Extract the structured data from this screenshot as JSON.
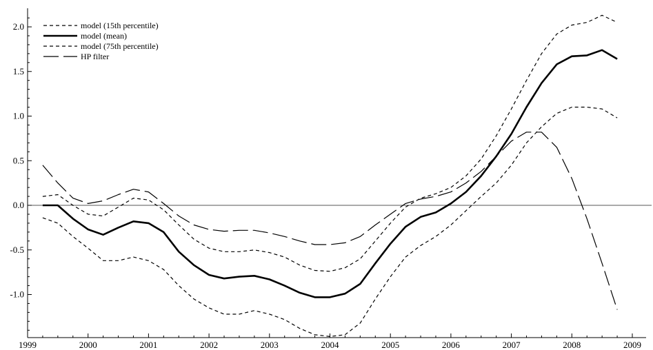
{
  "chart_data": {
    "type": "line",
    "title": "",
    "xlabel": "",
    "ylabel": "",
    "xlim": [
      1999,
      2009
    ],
    "ylim": [
      -1.5,
      2.2
    ],
    "x_ticks": [
      1999,
      2000,
      2001,
      2002,
      2003,
      2004,
      2005,
      2006,
      2007,
      2008,
      2009
    ],
    "x_tick_labels": [
      "1999",
      "2000",
      "2001",
      "2002",
      "2003",
      "2004",
      "2005",
      "2006",
      "2007",
      "2008",
      "2009"
    ],
    "y_ticks": [
      -1.0,
      -0.5,
      0.0,
      0.5,
      1.0,
      1.5,
      2.0
    ],
    "y_tick_labels": [
      "-1.0",
      "-0.5",
      "0.0",
      "0.5",
      "1.0",
      "1.5",
      "2.0"
    ],
    "grid": false,
    "zero_line": true,
    "legend_position": "top-left",
    "series": [
      {
        "name": "model (15th percentile)",
        "style": "short-dash",
        "color": "#000000",
        "points": [
          [
            1999.25,
            -0.14
          ],
          [
            1999.5,
            -0.2
          ],
          [
            1999.75,
            -0.35
          ],
          [
            2000.0,
            -0.48
          ],
          [
            2000.25,
            -0.62
          ],
          [
            2000.5,
            -0.62
          ],
          [
            2000.75,
            -0.58
          ],
          [
            2001.0,
            -0.62
          ],
          [
            2001.25,
            -0.72
          ],
          [
            2001.5,
            -0.9
          ],
          [
            2001.75,
            -1.05
          ],
          [
            2002.0,
            -1.15
          ],
          [
            2002.25,
            -1.22
          ],
          [
            2002.5,
            -1.22
          ],
          [
            2002.75,
            -1.18
          ],
          [
            2003.0,
            -1.22
          ],
          [
            2003.25,
            -1.28
          ],
          [
            2003.5,
            -1.38
          ],
          [
            2003.75,
            -1.45
          ],
          [
            2004.0,
            -1.47
          ],
          [
            2004.25,
            -1.45
          ],
          [
            2004.5,
            -1.32
          ],
          [
            2004.75,
            -1.05
          ],
          [
            2005.0,
            -0.8
          ],
          [
            2005.25,
            -0.58
          ],
          [
            2005.5,
            -0.45
          ],
          [
            2005.75,
            -0.35
          ],
          [
            2006.0,
            -0.22
          ],
          [
            2006.25,
            -0.06
          ],
          [
            2006.5,
            0.1
          ],
          [
            2006.75,
            0.25
          ],
          [
            2007.0,
            0.45
          ],
          [
            2007.25,
            0.7
          ],
          [
            2007.5,
            0.88
          ],
          [
            2007.75,
            1.03
          ],
          [
            2008.0,
            1.1
          ],
          [
            2008.25,
            1.1
          ],
          [
            2008.5,
            1.08
          ],
          [
            2008.75,
            0.98
          ]
        ]
      },
      {
        "name": "model (mean)",
        "style": "solid-thick",
        "color": "#000000",
        "points": [
          [
            1999.25,
            0.0
          ],
          [
            1999.5,
            0.0
          ],
          [
            1999.75,
            -0.15
          ],
          [
            2000.0,
            -0.27
          ],
          [
            2000.25,
            -0.33
          ],
          [
            2000.5,
            -0.25
          ],
          [
            2000.75,
            -0.18
          ],
          [
            2001.0,
            -0.2
          ],
          [
            2001.25,
            -0.3
          ],
          [
            2001.5,
            -0.52
          ],
          [
            2001.75,
            -0.67
          ],
          [
            2002.0,
            -0.78
          ],
          [
            2002.25,
            -0.82
          ],
          [
            2002.5,
            -0.8
          ],
          [
            2002.75,
            -0.79
          ],
          [
            2003.0,
            -0.83
          ],
          [
            2003.25,
            -0.9
          ],
          [
            2003.5,
            -0.98
          ],
          [
            2003.75,
            -1.03
          ],
          [
            2004.0,
            -1.03
          ],
          [
            2004.25,
            -0.99
          ],
          [
            2004.5,
            -0.88
          ],
          [
            2004.75,
            -0.65
          ],
          [
            2005.0,
            -0.43
          ],
          [
            2005.25,
            -0.24
          ],
          [
            2005.5,
            -0.13
          ],
          [
            2005.75,
            -0.08
          ],
          [
            2006.0,
            0.02
          ],
          [
            2006.25,
            0.15
          ],
          [
            2006.5,
            0.33
          ],
          [
            2006.75,
            0.55
          ],
          [
            2007.0,
            0.8
          ],
          [
            2007.25,
            1.1
          ],
          [
            2007.5,
            1.37
          ],
          [
            2007.75,
            1.58
          ],
          [
            2008.0,
            1.67
          ],
          [
            2008.25,
            1.68
          ],
          [
            2008.5,
            1.74
          ],
          [
            2008.75,
            1.64
          ]
        ]
      },
      {
        "name": "model (75th percentile)",
        "style": "short-dash",
        "color": "#000000",
        "points": [
          [
            1999.25,
            0.1
          ],
          [
            1999.5,
            0.12
          ],
          [
            1999.75,
            0.0
          ],
          [
            2000.0,
            -0.1
          ],
          [
            2000.25,
            -0.12
          ],
          [
            2000.5,
            -0.02
          ],
          [
            2000.75,
            0.08
          ],
          [
            2001.0,
            0.06
          ],
          [
            2001.25,
            -0.05
          ],
          [
            2001.5,
            -0.22
          ],
          [
            2001.75,
            -0.38
          ],
          [
            2002.0,
            -0.48
          ],
          [
            2002.25,
            -0.52
          ],
          [
            2002.5,
            -0.52
          ],
          [
            2002.75,
            -0.5
          ],
          [
            2003.0,
            -0.53
          ],
          [
            2003.25,
            -0.58
          ],
          [
            2003.5,
            -0.67
          ],
          [
            2003.75,
            -0.73
          ],
          [
            2004.0,
            -0.74
          ],
          [
            2004.25,
            -0.7
          ],
          [
            2004.5,
            -0.6
          ],
          [
            2004.75,
            -0.4
          ],
          [
            2005.0,
            -0.2
          ],
          [
            2005.25,
            -0.02
          ],
          [
            2005.5,
            0.08
          ],
          [
            2005.75,
            0.13
          ],
          [
            2006.0,
            0.2
          ],
          [
            2006.25,
            0.33
          ],
          [
            2006.5,
            0.52
          ],
          [
            2006.75,
            0.78
          ],
          [
            2007.0,
            1.08
          ],
          [
            2007.25,
            1.4
          ],
          [
            2007.5,
            1.7
          ],
          [
            2007.75,
            1.92
          ],
          [
            2008.0,
            2.02
          ],
          [
            2008.25,
            2.05
          ],
          [
            2008.5,
            2.13
          ],
          [
            2008.75,
            2.05
          ]
        ]
      },
      {
        "name": "HP filter",
        "style": "long-dash",
        "color": "#000000",
        "points": [
          [
            1999.25,
            0.45
          ],
          [
            1999.5,
            0.25
          ],
          [
            1999.75,
            0.08
          ],
          [
            2000.0,
            0.02
          ],
          [
            2000.25,
            0.05
          ],
          [
            2000.5,
            0.12
          ],
          [
            2000.75,
            0.18
          ],
          [
            2001.0,
            0.15
          ],
          [
            2001.25,
            0.02
          ],
          [
            2001.5,
            -0.12
          ],
          [
            2001.75,
            -0.22
          ],
          [
            2002.0,
            -0.27
          ],
          [
            2002.25,
            -0.29
          ],
          [
            2002.5,
            -0.28
          ],
          [
            2002.75,
            -0.28
          ],
          [
            2003.0,
            -0.31
          ],
          [
            2003.25,
            -0.35
          ],
          [
            2003.5,
            -0.4
          ],
          [
            2003.75,
            -0.44
          ],
          [
            2004.0,
            -0.44
          ],
          [
            2004.25,
            -0.42
          ],
          [
            2004.5,
            -0.35
          ],
          [
            2004.75,
            -0.22
          ],
          [
            2005.0,
            -0.1
          ],
          [
            2005.25,
            0.02
          ],
          [
            2005.5,
            0.07
          ],
          [
            2005.75,
            0.1
          ],
          [
            2006.0,
            0.15
          ],
          [
            2006.25,
            0.25
          ],
          [
            2006.5,
            0.38
          ],
          [
            2006.75,
            0.55
          ],
          [
            2007.0,
            0.72
          ],
          [
            2007.25,
            0.82
          ],
          [
            2007.5,
            0.82
          ],
          [
            2007.75,
            0.65
          ],
          [
            2008.0,
            0.3
          ],
          [
            2008.25,
            -0.15
          ],
          [
            2008.5,
            -0.65
          ],
          [
            2008.75,
            -1.17
          ]
        ]
      }
    ]
  }
}
